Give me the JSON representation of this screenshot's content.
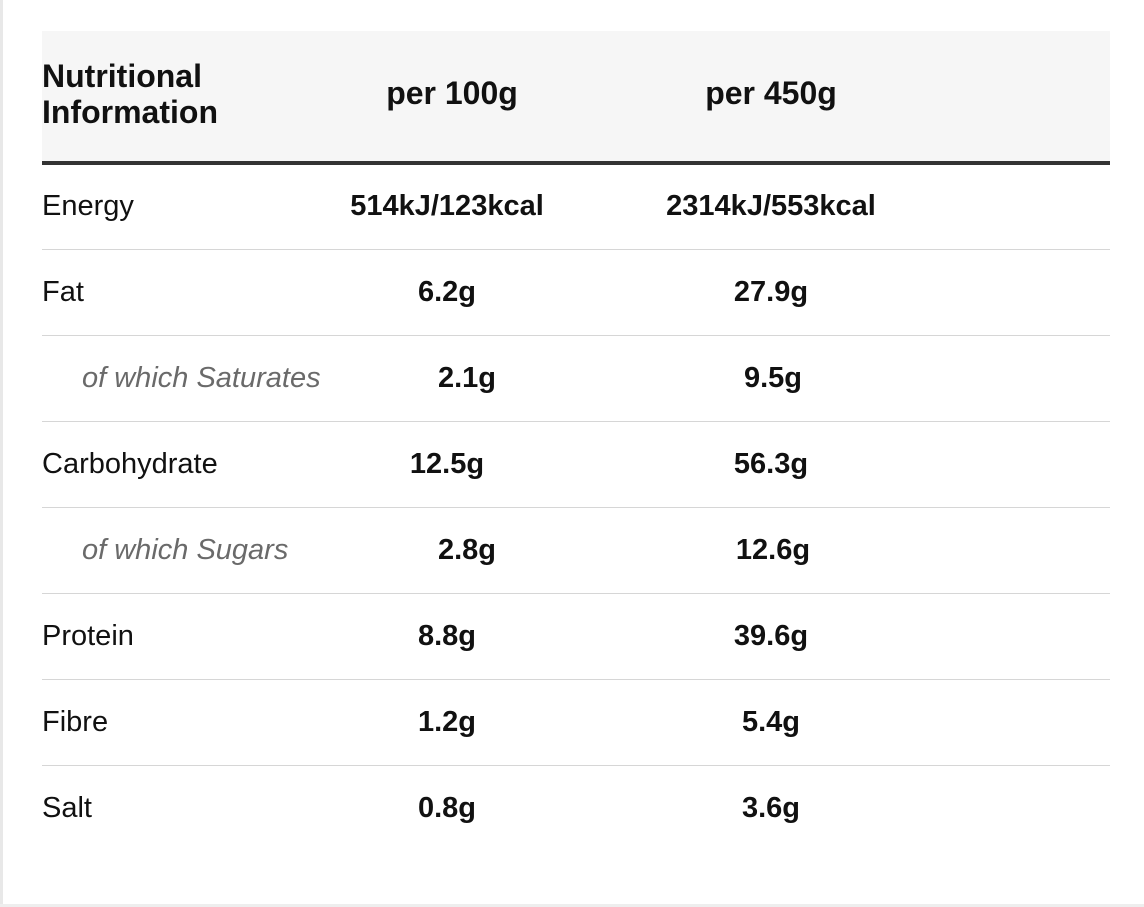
{
  "table": {
    "header": {
      "label_line1": "Nutritional",
      "label_line2": "Information",
      "per_100g": "per 100g",
      "per_450g": "per 450g"
    },
    "rows": [
      {
        "name": "Energy",
        "sub": false,
        "per_100g": "514kJ/123kcal",
        "per_450g": "2314kJ/553kcal"
      },
      {
        "name": "Fat",
        "sub": false,
        "per_100g": "6.2g",
        "per_450g": "27.9g"
      },
      {
        "name": "of which Saturates",
        "sub": true,
        "per_100g": "2.1g",
        "per_450g": "9.5g"
      },
      {
        "name": "Carbohydrate",
        "sub": false,
        "per_100g": "12.5g",
        "per_450g": "56.3g"
      },
      {
        "name": "of which Sugars",
        "sub": true,
        "per_100g": "2.8g",
        "per_450g": "12.6g"
      },
      {
        "name": "Protein",
        "sub": false,
        "per_100g": "8.8g",
        "per_450g": "39.6g"
      },
      {
        "name": "Fibre",
        "sub": false,
        "per_100g": "1.2g",
        "per_450g": "5.4g"
      },
      {
        "name": "Salt",
        "sub": false,
        "per_100g": "0.8g",
        "per_450g": "3.6g"
      }
    ]
  },
  "colors": {
    "header_background": "#f6f6f6",
    "header_rule": "#333333",
    "row_divider": "#d6d6d6",
    "sub_label_text": "#6a6a6a"
  }
}
